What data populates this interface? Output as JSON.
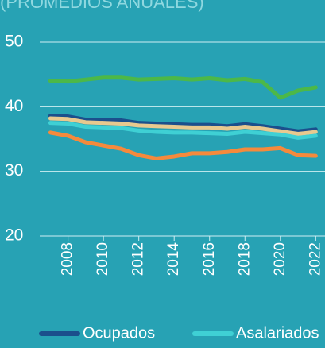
{
  "chart_data": {
    "type": "line",
    "title": "(PROMEDIOS ANUALES)",
    "x": [
      2007,
      2008,
      2009,
      2010,
      2011,
      2012,
      2013,
      2014,
      2015,
      2016,
      2017,
      2018,
      2019,
      2020,
      2021,
      2022
    ],
    "series": [
      {
        "color": "#4cb848",
        "values": [
          44.0,
          43.9,
          44.2,
          44.5,
          44.5,
          44.2,
          44.3,
          44.4,
          44.2,
          44.4,
          44.1,
          44.3,
          43.8,
          41.4,
          42.5,
          43.0
        ]
      },
      {
        "name": "Ocupados",
        "color": "#1b4f8c",
        "values": [
          38.6,
          38.5,
          38.0,
          37.9,
          37.9,
          37.5,
          37.4,
          37.3,
          37.2,
          37.2,
          37.0,
          37.3,
          37.0,
          36.6,
          36.2,
          36.5
        ]
      },
      {
        "color": "#e8c98f",
        "values": [
          38.2,
          38.1,
          37.6,
          37.5,
          37.4,
          37.1,
          37.0,
          36.9,
          36.8,
          36.8,
          36.6,
          36.9,
          36.6,
          36.2,
          35.8,
          36.1
        ]
      },
      {
        "name": "Asalariados",
        "color": "#3fd0d4",
        "values": [
          37.5,
          37.4,
          36.9,
          36.8,
          36.7,
          36.3,
          36.1,
          36.0,
          36.0,
          35.9,
          35.8,
          36.1,
          35.9,
          35.7,
          35.2,
          35.5
        ]
      },
      {
        "color": "#f58a3c",
        "values": [
          36.0,
          35.5,
          34.5,
          34.0,
          33.5,
          32.5,
          32.0,
          32.3,
          32.8,
          32.8,
          33.0,
          33.4,
          33.4,
          33.6,
          32.5,
          32.4
        ]
      }
    ],
    "xlim": [
      2006.4,
      2022.3
    ],
    "xticks": [
      2008,
      2010,
      2012,
      2014,
      2016,
      2018,
      2020,
      2022
    ],
    "ylim": [
      20,
      50
    ],
    "yticks": [
      20,
      30,
      40,
      50
    ],
    "grid": true
  }
}
